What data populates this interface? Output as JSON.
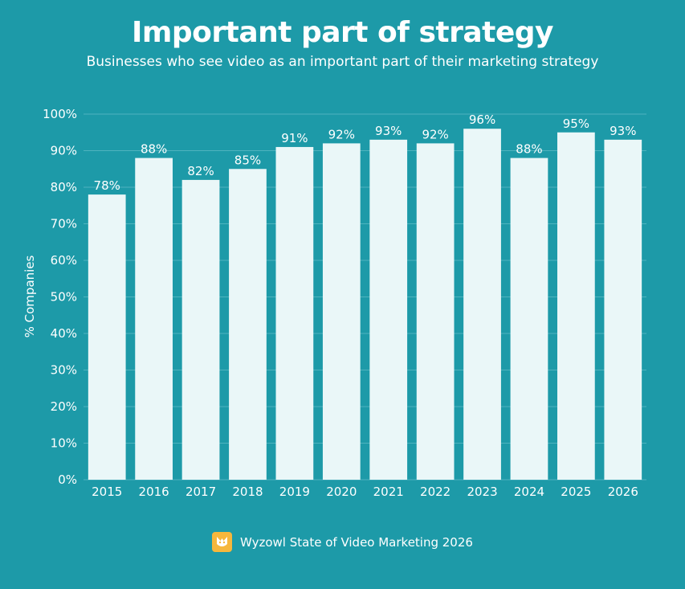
{
  "colors": {
    "background": "#1d9aa8",
    "bar": "#eaf7f8",
    "grid": "#4fb3bf",
    "logo": "#f6b73c"
  },
  "footer": {
    "source": "Wyzowl State of Video Marketing 2026",
    "logo_icon": "wyzowl-owl-logo"
  },
  "chart_data": {
    "type": "bar",
    "title": "Important part of strategy",
    "subtitle": "Businesses who see video as an important part of their marketing strategy",
    "xlabel": "",
    "ylabel": "% Companies",
    "categories": [
      "2015",
      "2016",
      "2017",
      "2018",
      "2019",
      "2020",
      "2021",
      "2022",
      "2023",
      "2024",
      "2025",
      "2026"
    ],
    "values": [
      78,
      88,
      82,
      85,
      91,
      92,
      93,
      92,
      96,
      88,
      95,
      93
    ],
    "data_labels": [
      "78%",
      "88%",
      "82%",
      "85%",
      "91%",
      "92%",
      "93%",
      "92%",
      "96%",
      "88%",
      "95%",
      "93%"
    ],
    "ylim": [
      0,
      100
    ],
    "yticks": [
      "0%",
      "10%",
      "20%",
      "30%",
      "40%",
      "50%",
      "60%",
      "70%",
      "80%",
      "90%",
      "100%"
    ],
    "grid": true,
    "legend": "none"
  }
}
